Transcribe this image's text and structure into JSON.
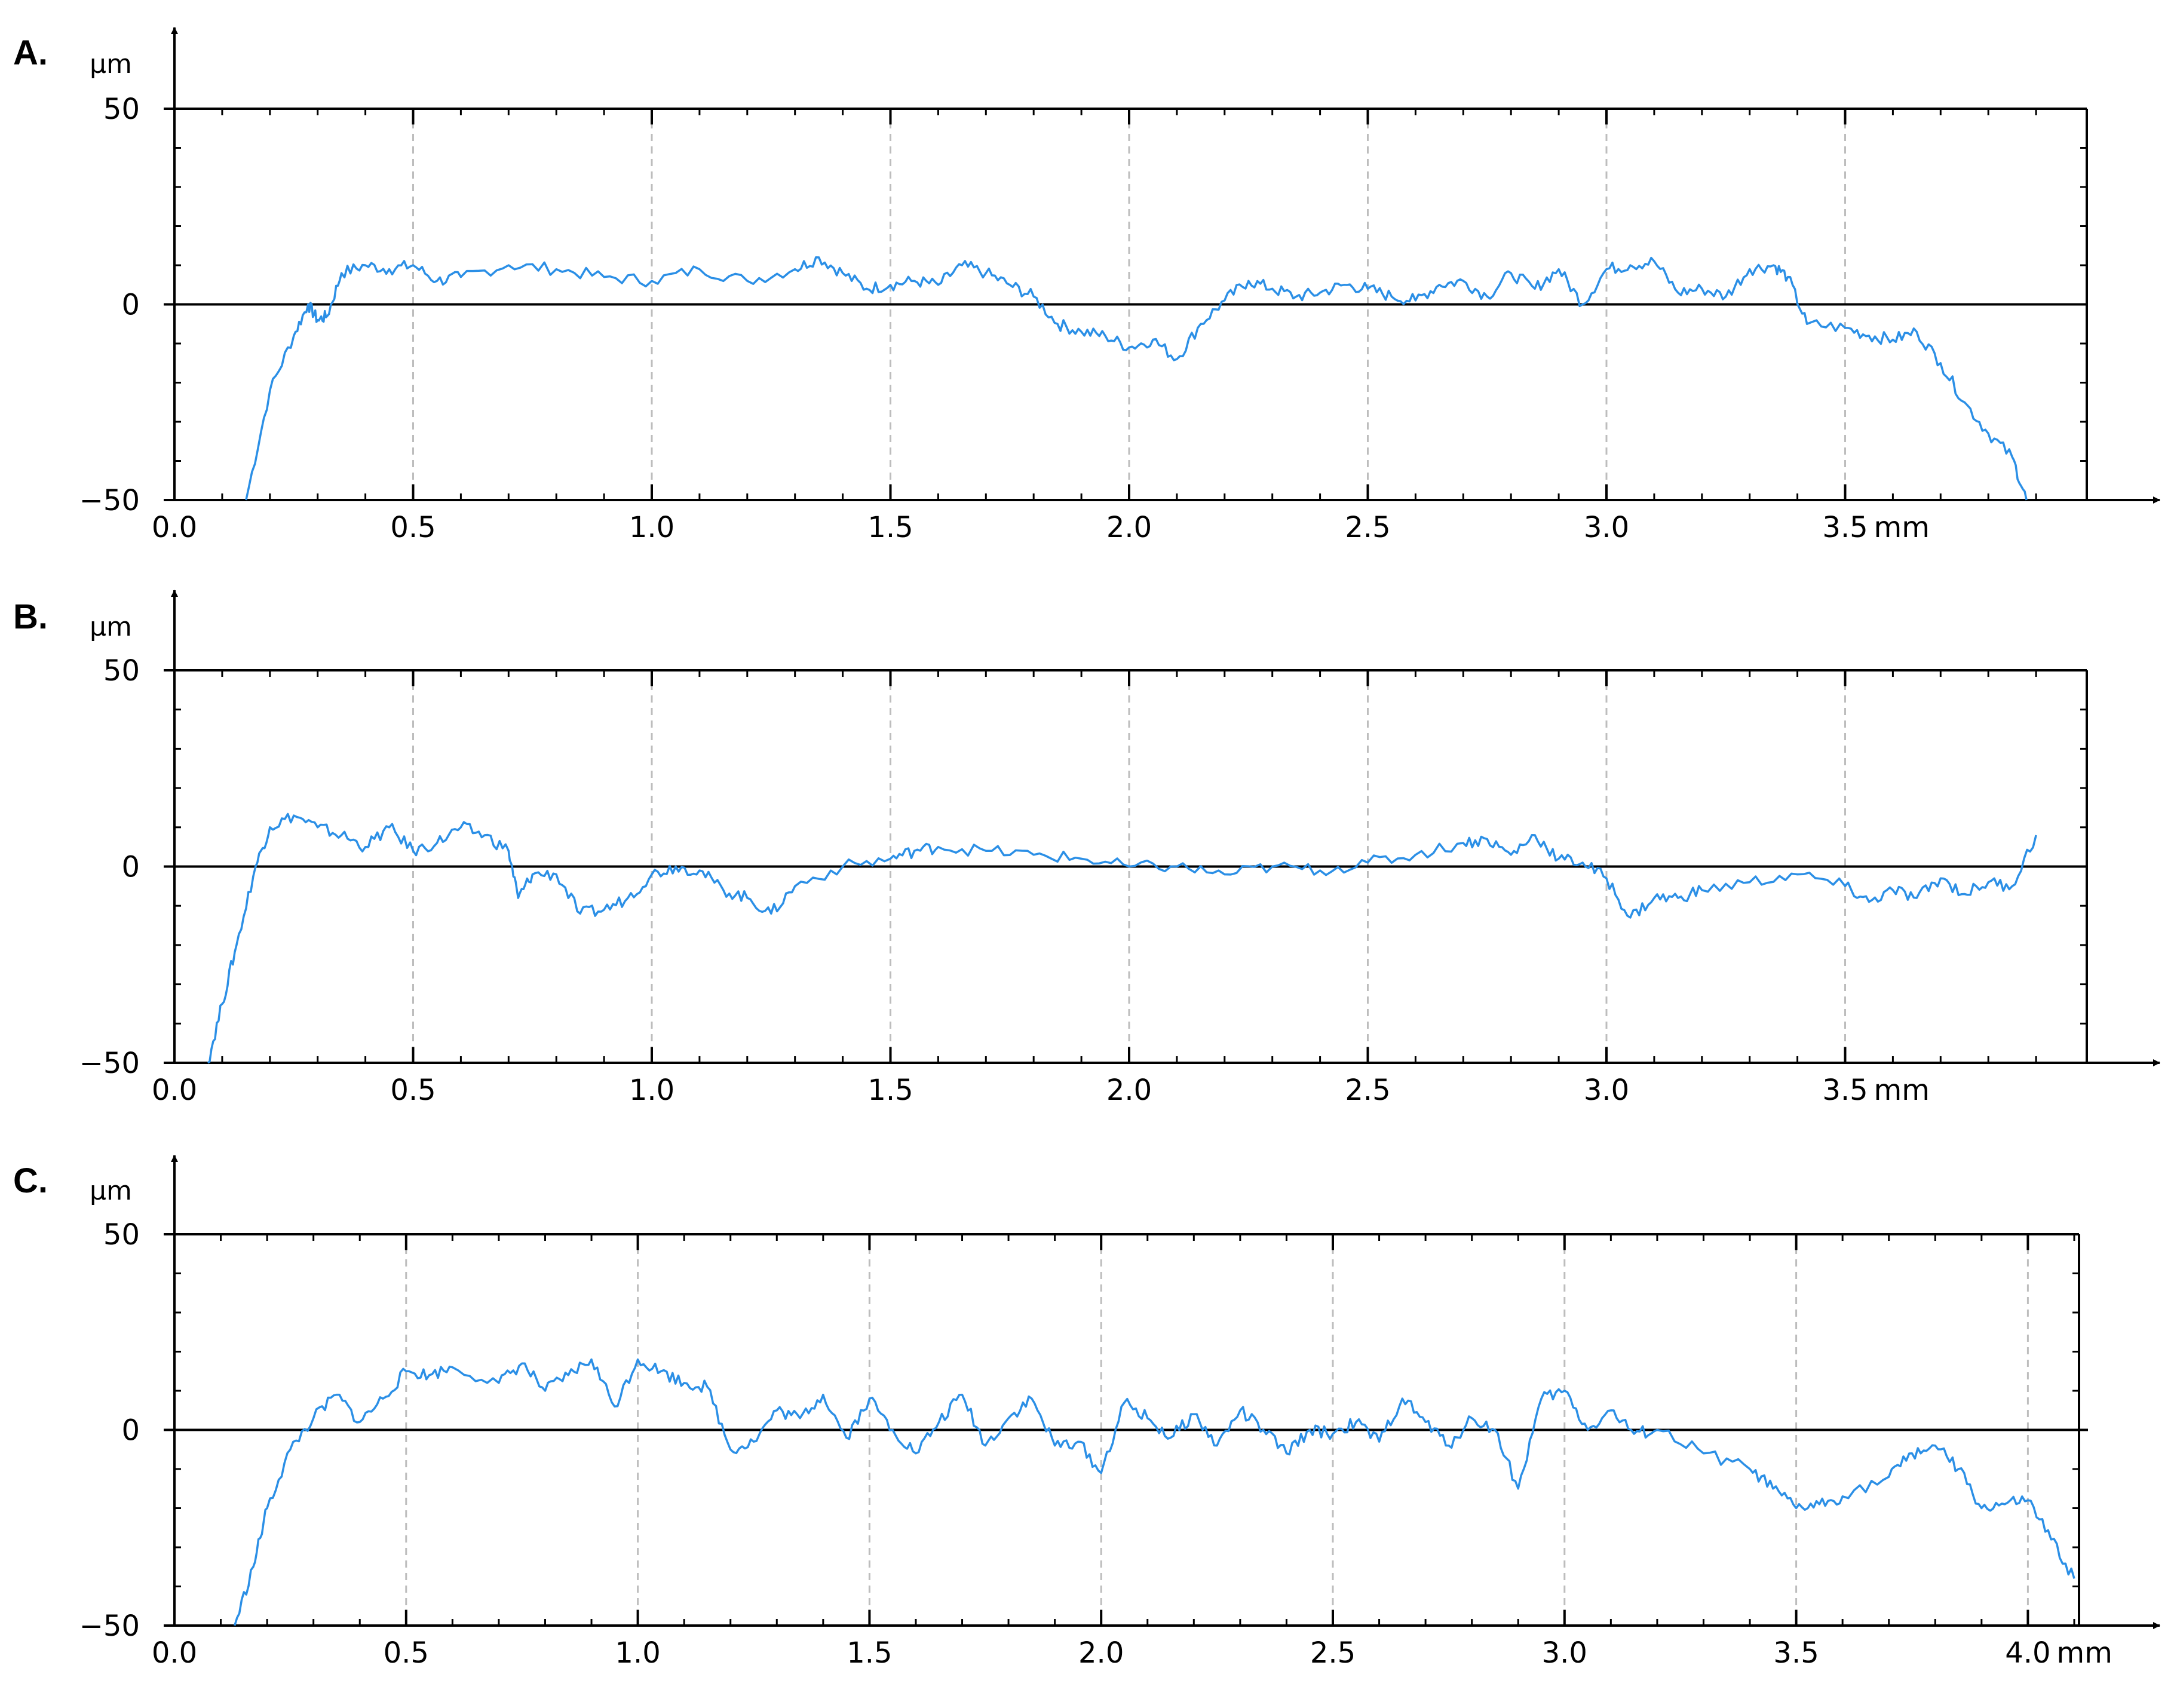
{
  "chart_data": [
    {
      "type": "line",
      "panel_label": "A.",
      "y_unit": "µm",
      "x_unit": "mm",
      "x_max": 3.9,
      "xlim": [
        0,
        3.9
      ],
      "ylim": [
        -50,
        50
      ],
      "x_ticks": [
        "0.0",
        "0.5",
        "1.0",
        "1.5",
        "2.0",
        "2.5",
        "3.0",
        "3.5"
      ],
      "y_ticks": [
        "50",
        "0",
        "−50"
      ],
      "grid": "vertical dashed at each 0.5 mm",
      "color": "#2b8fe6",
      "series": [
        {
          "x": [
            0.15,
            0.2,
            0.25,
            0.28,
            0.3,
            0.32,
            0.35,
            0.4,
            0.45,
            0.5,
            0.55,
            0.6,
            0.7,
            0.8,
            0.9,
            1.0,
            1.1,
            1.2,
            1.3,
            1.35,
            1.4,
            1.45,
            1.5,
            1.55,
            1.6,
            1.65,
            1.7,
            1.75,
            1.8,
            1.85,
            1.9,
            1.95,
            2.0,
            2.05,
            2.1,
            2.15,
            2.2,
            2.25,
            2.3,
            2.35,
            2.4,
            2.45,
            2.5,
            2.55,
            2.6,
            2.65,
            2.7,
            2.75,
            2.8,
            2.85,
            2.9,
            2.95,
            3.0,
            3.05,
            3.1,
            3.15,
            3.2,
            3.25,
            3.3,
            3.35,
            3.38,
            3.42,
            3.5,
            3.55,
            3.6,
            3.65,
            3.7,
            3.75,
            3.8,
            3.85,
            3.88
          ],
          "y": [
            -50,
            -22,
            -8,
            0,
            -4,
            -3,
            8,
            10,
            9,
            10,
            6,
            7,
            10,
            9,
            7,
            6,
            9,
            6,
            9,
            12,
            8,
            4,
            5,
            6,
            5,
            10,
            8,
            5,
            2,
            -5,
            -7,
            -8,
            -11,
            -9,
            -14,
            -5,
            1,
            6,
            4,
            2,
            3,
            5,
            4,
            2,
            1,
            5,
            6,
            2,
            8,
            4,
            9,
            0,
            9,
            10,
            11,
            3,
            4,
            2,
            9,
            10,
            7,
            -5,
            -6,
            -8,
            -9,
            -7,
            -15,
            -25,
            -33,
            -39,
            -50
          ]
        }
      ]
    },
    {
      "type": "line",
      "panel_label": "B.",
      "y_unit": "µm",
      "x_unit": "mm",
      "x_max": 3.9,
      "xlim": [
        0,
        3.9
      ],
      "ylim": [
        -50,
        50
      ],
      "x_ticks": [
        "0.0",
        "0.5",
        "1.0",
        "1.5",
        "2.0",
        "2.5",
        "3.0",
        "3.5"
      ],
      "y_ticks": [
        "50",
        "0",
        "−50"
      ],
      "grid": "vertical dashed at each 0.5 mm",
      "color": "#2b8fe6",
      "series": [
        {
          "x": [
            0.07,
            0.1,
            0.13,
            0.17,
            0.2,
            0.25,
            0.3,
            0.35,
            0.4,
            0.45,
            0.5,
            0.55,
            0.6,
            0.65,
            0.7,
            0.72,
            0.75,
            0.8,
            0.85,
            0.9,
            0.95,
            1.0,
            1.05,
            1.1,
            1.15,
            1.2,
            1.25,
            1.3,
            1.4,
            1.5,
            1.55,
            1.6,
            1.7,
            1.8,
            1.9,
            2.0,
            2.1,
            2.2,
            2.3,
            2.4,
            2.5,
            2.6,
            2.7,
            2.75,
            2.8,
            2.85,
            2.9,
            2.95,
            3.0,
            3.05,
            3.1,
            3.15,
            3.2,
            3.3,
            3.4,
            3.5,
            3.55,
            3.6,
            3.65,
            3.7,
            3.75,
            3.8,
            3.85,
            3.9
          ],
          "y": [
            -50,
            -35,
            -20,
            0,
            10,
            13,
            10,
            8,
            5,
            10,
            4,
            6,
            10,
            8,
            4,
            -8,
            -2,
            -2,
            -12,
            -11,
            -8,
            -2,
            0,
            -1,
            -6,
            -8,
            -12,
            -5,
            0,
            2,
            4,
            5,
            4,
            3,
            2,
            0,
            0,
            -2,
            0,
            -1,
            1,
            3,
            6,
            7,
            3,
            8,
            2,
            1,
            -3,
            -13,
            -8,
            -8,
            -6,
            -4,
            -2,
            -5,
            -9,
            -6,
            -8,
            -3,
            -7,
            -4,
            -5,
            8
          ]
        }
      ]
    },
    {
      "type": "line",
      "panel_label": "C.",
      "y_unit": "µm",
      "x_unit": "mm",
      "x_max": 4.1,
      "xlim": [
        0,
        4.1
      ],
      "ylim": [
        -50,
        50
      ],
      "x_ticks": [
        "0.0",
        "0.5",
        "1.0",
        "1.5",
        "2.0",
        "2.5",
        "3.0",
        "3.5",
        "4.0"
      ],
      "y_ticks": [
        "50",
        "0",
        "−50"
      ],
      "grid": "vertical dashed at each 0.5 mm",
      "color": "#2b8fe6",
      "series": [
        {
          "x": [
            0.13,
            0.17,
            0.2,
            0.25,
            0.3,
            0.35,
            0.4,
            0.45,
            0.5,
            0.55,
            0.6,
            0.7,
            0.75,
            0.8,
            0.85,
            0.9,
            0.95,
            1.0,
            1.05,
            1.1,
            1.15,
            1.2,
            1.25,
            1.3,
            1.35,
            1.4,
            1.45,
            1.5,
            1.55,
            1.6,
            1.65,
            1.7,
            1.75,
            1.8,
            1.85,
            1.9,
            1.95,
            2.0,
            2.05,
            2.1,
            2.15,
            2.2,
            2.25,
            2.3,
            2.35,
            2.4,
            2.45,
            2.5,
            2.55,
            2.6,
            2.65,
            2.7,
            2.75,
            2.8,
            2.85,
            2.9,
            2.95,
            3.0,
            3.05,
            3.1,
            3.15,
            3.2,
            3.3,
            3.4,
            3.45,
            3.5,
            3.55,
            3.6,
            3.7,
            3.75,
            3.8,
            3.85,
            3.9,
            3.95,
            4.0,
            4.05,
            4.1
          ],
          "y": [
            -50,
            -35,
            -20,
            -5,
            3,
            9,
            2,
            8,
            15,
            14,
            16,
            12,
            17,
            10,
            14,
            18,
            6,
            18,
            15,
            12,
            11,
            -5,
            -3,
            5,
            3,
            9,
            -2,
            8,
            0,
            -6,
            2,
            9,
            -4,
            3,
            8,
            -4,
            -3,
            -11,
            7,
            3,
            -2,
            4,
            -4,
            5,
            0,
            -6,
            0,
            -1,
            2,
            -3,
            8,
            2,
            -4,
            3,
            0,
            -15,
            8,
            10,
            0,
            5,
            -1,
            0,
            -6,
            -10,
            -15,
            -20,
            -19,
            -17,
            -12,
            -6,
            -4,
            -10,
            -20,
            -19,
            -18,
            -28,
            -38
          ]
        }
      ]
    }
  ]
}
